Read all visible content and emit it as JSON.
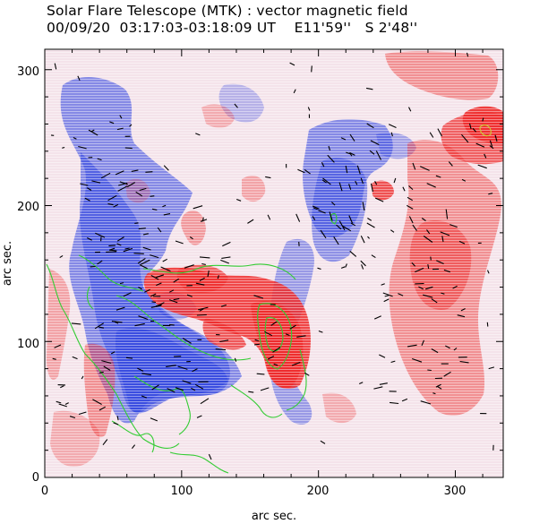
{
  "header": {
    "title": "Solar Flare Telescope (MTK) : vector magnetic field",
    "date": "00/09/20",
    "time_range": "03:17:03-03:18:09 UT",
    "position_ew": "E11'59''",
    "position_ns": "S 2'48''"
  },
  "axes": {
    "xlabel": "arc sec.",
    "ylabel": "arc sec.",
    "x_ticks": [
      "0",
      "100",
      "200",
      "300"
    ],
    "y_ticks": [
      "0",
      "100",
      "200",
      "300"
    ],
    "xlim": [
      0,
      335
    ],
    "ylim": [
      0,
      315
    ]
  },
  "colors": {
    "positive_field": "#ee2a2a",
    "negative_field": "#2a3fe0",
    "contour": "#33cc33",
    "vectors": "#000000"
  }
}
